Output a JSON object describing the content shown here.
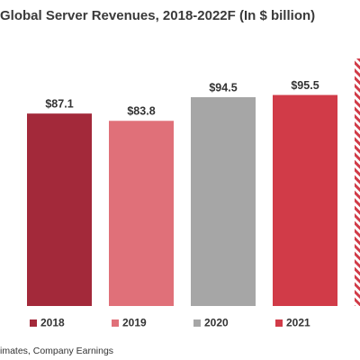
{
  "chart_data": {
    "type": "bar",
    "title": "Global Server Revenues, 2018-2022F (In $ billion)",
    "categories": [
      "2018",
      "2019",
      "2020",
      "2021",
      null
    ],
    "values": [
      87.1,
      83.8,
      94.5,
      95.5,
      112
    ],
    "value_labels": [
      "$87.1",
      "$83.8",
      "$94.5",
      "$95.5",
      null
    ],
    "colors": [
      "#a3293a",
      "#e07079",
      "#a6a6a6",
      "#d13b48",
      "#d13b48"
    ],
    "hatched": [
      false,
      false,
      false,
      false,
      true
    ],
    "legend": "bottom",
    "source": "imates, Company Earnings"
  }
}
